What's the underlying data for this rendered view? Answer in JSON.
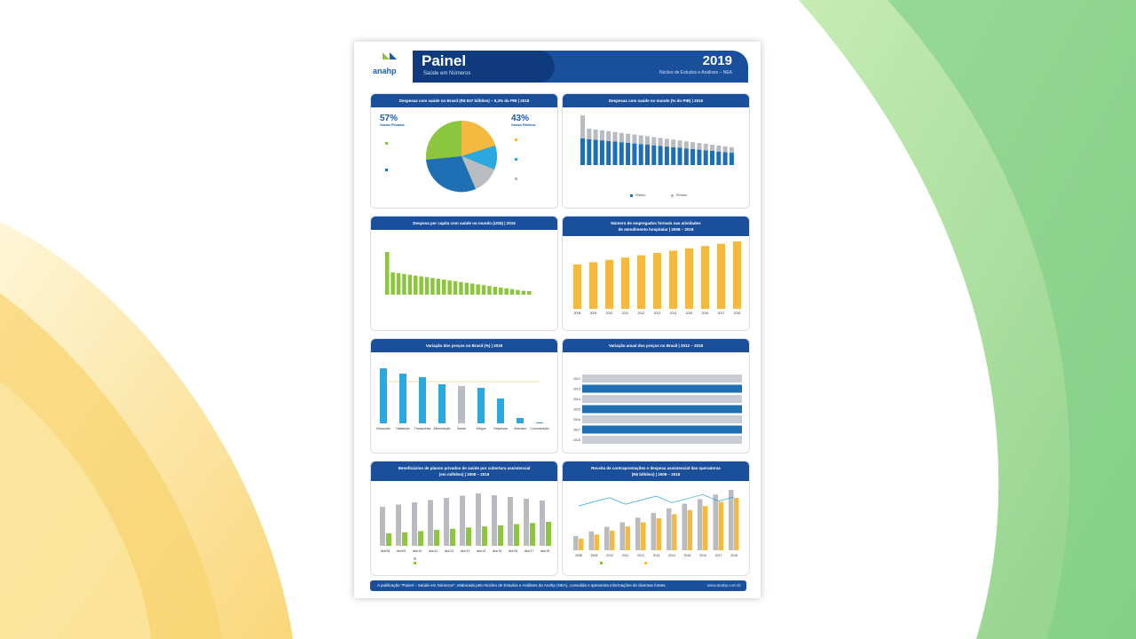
{
  "header": {
    "logo": "anahp",
    "title": "Painel",
    "subtitle": "Saúde em Números",
    "year": "2019",
    "nea": "Núcleo de Estudos e Análises – NEA"
  },
  "panels": {
    "p1": {
      "title": "Despesas com saúde no Brasil (R$ 637 bilhões) – 9,3% do PIB | 2018",
      "left_pct": "57%",
      "left_label": "Gastos Privados",
      "right_pct": "43%",
      "right_label": "Gastos Públicos",
      "colors": [
        "#f6b940",
        "#2aa8e0",
        "#b8bbc0",
        "#1f6fb4",
        "#8cc63f"
      ]
    },
    "p2": {
      "title": "Despesas com saúde no mundo (% do PIB) | 2015",
      "legend_publico": "Público",
      "legend_privado": "Privado"
    },
    "p3": {
      "title": "Despesa per capita com saúde no mundo (US$) | 2015"
    },
    "p4": {
      "title_line1": "Número de empregados formais nas atividades",
      "title_line2": "de atendimento hospitalar | 2008 – 2018",
      "years": [
        "2008",
        "2009",
        "2010",
        "2011",
        "2012",
        "2013",
        "2014",
        "2015",
        "2016",
        "2017",
        "2018"
      ]
    },
    "p5": {
      "title": "Variação dos preços no Brasil (%) | 2018",
      "categories": [
        "Educação",
        "Habitação",
        "Transportes",
        "Alimentação e bebidas",
        "Saúde e cuidados pessoais",
        "Artigos de residência",
        "Despesas Pessoais",
        "Vestuário",
        "Comunicação"
      ]
    },
    "p6": {
      "title": "Variação anual dos preços no Brasil | 2012 – 2018",
      "years": [
        "2012",
        "2013",
        "2014",
        "2015",
        "2016",
        "2017",
        "2018"
      ]
    },
    "p7": {
      "title_line1": "Beneficiários de planos privados de saúde por cobertura assistencial",
      "title_line2": "(em milhões) | 2008 – 2018",
      "periods": [
        "dez/08",
        "dez/09",
        "dez/10",
        "dez/11",
        "dez/12",
        "dez/13",
        "dez/14",
        "dez/15",
        "dez/16",
        "dez/17",
        "dez/18"
      ]
    },
    "p8": {
      "title_line1": "Receita de contraprestações e despesa assistencial das operadoras",
      "title_line2": "(R$ bilhões) | 2008 – 2018",
      "years": [
        "2008",
        "2009",
        "2010",
        "2011",
        "2012",
        "2013",
        "2014",
        "2015",
        "2016",
        "2017",
        "2018"
      ]
    }
  },
  "footer": {
    "text": "A publicação \"Painel – Saúde em Números\", elaborada pelo Núcleo de Estudos e Análises da Anahp (NEA), consolida e apresenta informações de diversas fontes.",
    "url": "www.anahp.com.br"
  },
  "colors": {
    "navy": "#1a4f9c",
    "green": "#8cc63f",
    "blue": "#2aa8e0",
    "orange": "#f6b940",
    "gray": "#b8bbc0"
  }
}
